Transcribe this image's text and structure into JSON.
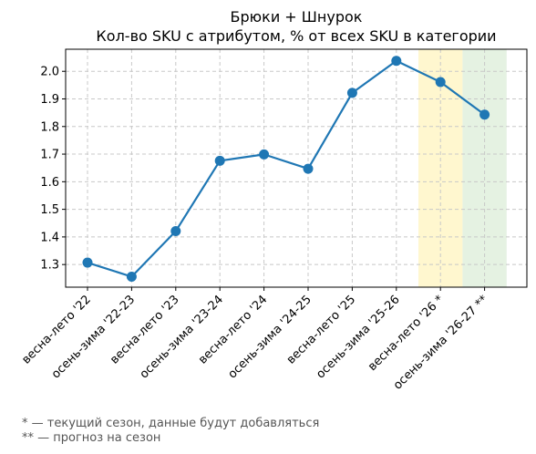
{
  "chart_data": {
    "type": "line",
    "title": "Брюки + Шнурок",
    "subtitle": "Кол-во SKU с атрибутом, % от всех SKU в категории",
    "xlabel": "",
    "ylabel": "",
    "categories": [
      "весна-лето '22",
      "осень-зима '22-23",
      "весна-лето '23",
      "осень-зима '23-24",
      "весна-лето '24",
      "осень-зима '24-25",
      "весна-лето '25",
      "осень-зима '25-26",
      "весна-лето '26 *",
      "осень-зима '26-27 **"
    ],
    "series": [
      {
        "values": [
          1.307,
          1.256,
          1.421,
          1.676,
          1.699,
          1.647,
          1.922,
          2.038,
          1.961,
          1.843
        ],
        "color": "#1f77b4"
      }
    ],
    "ylim": [
      1.218,
      2.08
    ],
    "yticks": [
      1.3,
      1.4,
      1.5,
      1.6,
      1.7,
      1.8,
      1.9,
      2.0
    ],
    "ytick_labels": [
      "1.3",
      "1.4",
      "1.5",
      "1.6",
      "1.7",
      "1.8",
      "1.9",
      "2.0"
    ],
    "grid": true,
    "highlight_bands": [
      {
        "category": "весна-лето '26 *",
        "color": "#fff7cf"
      },
      {
        "category": "осень-зима '26-27 **",
        "color": "#e5f2e2"
      }
    ]
  },
  "footnotes": [
    "* — текущий сезон, данные будут добавляться",
    "** — прогноз на сезон"
  ]
}
